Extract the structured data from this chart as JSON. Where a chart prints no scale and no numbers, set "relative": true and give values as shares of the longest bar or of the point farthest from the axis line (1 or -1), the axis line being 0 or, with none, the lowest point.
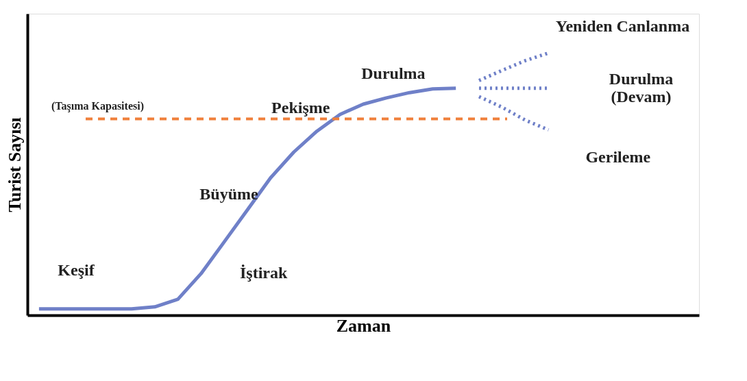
{
  "chart_data": {
    "type": "line",
    "relative": true,
    "xlabel": "Zaman",
    "ylabel": "Turist Sayısı",
    "categories": [
      null,
      null,
      null,
      null,
      null,
      null,
      null,
      null,
      null,
      null,
      null,
      null,
      null,
      null,
      null,
      null,
      null,
      null,
      null,
      null,
      null,
      null,
      null
    ],
    "series": [
      {
        "color": "#6f80c8",
        "line_style": "solid",
        "values": [
          0.024,
          0.024,
          0.024,
          0.024,
          0.024,
          0.032,
          0.061,
          0.159,
          0.28,
          0.402,
          0.524,
          0.622,
          0.702,
          0.766,
          0.805,
          0.829,
          0.849,
          0.863,
          0.866,
          null,
          null,
          null,
          null
        ]
      },
      {
        "color": "#6f80c8",
        "line_style": "dotted",
        "values": [
          null,
          null,
          null,
          null,
          null,
          null,
          null,
          null,
          null,
          null,
          null,
          null,
          null,
          null,
          null,
          null,
          null,
          null,
          null,
          0.895,
          0.934,
          0.971,
          1
        ]
      },
      {
        "color": "#6f80c8",
        "line_style": "dotted",
        "values": [
          null,
          null,
          null,
          null,
          null,
          null,
          null,
          null,
          null,
          null,
          null,
          null,
          null,
          null,
          null,
          null,
          null,
          null,
          null,
          0.866,
          0.866,
          0.866,
          0.866
        ]
      },
      {
        "color": "#6f80c8",
        "line_style": "dotted",
        "values": [
          null,
          null,
          null,
          null,
          null,
          null,
          null,
          null,
          null,
          null,
          null,
          null,
          null,
          null,
          null,
          null,
          null,
          null,
          null,
          0.834,
          0.793,
          0.744,
          0.707
        ]
      }
    ],
    "ref_lines": [
      {
        "axis": "y",
        "value": 0.749,
        "label": "(Taşıma Kapasitesi)",
        "color": "#f07f3a",
        "line_style": "dashed"
      }
    ],
    "annotations": [
      "Keşif",
      "İştirak",
      "Büyüme",
      "Pekişme",
      "Durulma",
      "Yeniden Canlanma",
      "Durulma\n(Devam)",
      "Gerileme"
    ],
    "grid": false
  }
}
